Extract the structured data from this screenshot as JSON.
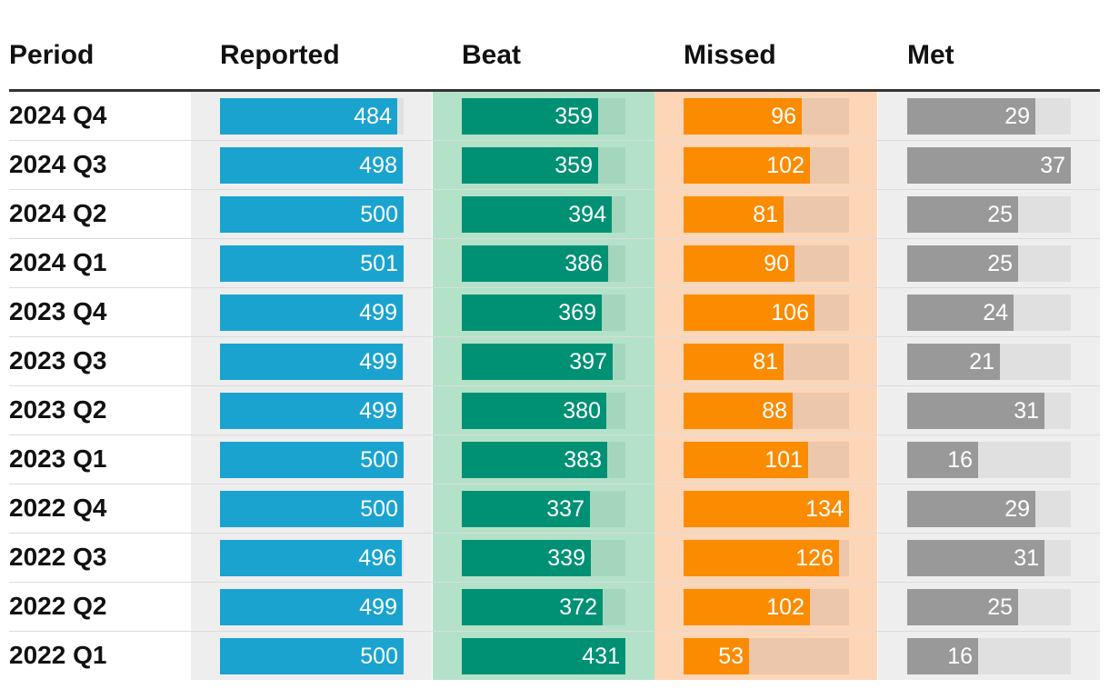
{
  "chart_data": {
    "type": "table",
    "columns": [
      "Period",
      "Reported",
      "Beat",
      "Missed",
      "Met"
    ],
    "rows": [
      {
        "period": "2024 Q4",
        "reported": 484,
        "beat": 359,
        "missed": 96,
        "met": 29
      },
      {
        "period": "2024 Q3",
        "reported": 498,
        "beat": 359,
        "missed": 102,
        "met": 37
      },
      {
        "period": "2024 Q2",
        "reported": 500,
        "beat": 394,
        "missed": 81,
        "met": 25
      },
      {
        "period": "2024 Q1",
        "reported": 501,
        "beat": 386,
        "missed": 90,
        "met": 25
      },
      {
        "period": "2023 Q4",
        "reported": 499,
        "beat": 369,
        "missed": 106,
        "met": 24
      },
      {
        "period": "2023 Q3",
        "reported": 499,
        "beat": 397,
        "missed": 81,
        "met": 21
      },
      {
        "period": "2023 Q2",
        "reported": 499,
        "beat": 380,
        "missed": 88,
        "met": 31
      },
      {
        "period": "2023 Q1",
        "reported": 500,
        "beat": 383,
        "missed": 101,
        "met": 16
      },
      {
        "period": "2022 Q4",
        "reported": 500,
        "beat": 337,
        "missed": 134,
        "met": 29
      },
      {
        "period": "2022 Q3",
        "reported": 496,
        "beat": 339,
        "missed": 126,
        "met": 31
      },
      {
        "period": "2022 Q2",
        "reported": 499,
        "beat": 372,
        "missed": 102,
        "met": 25
      },
      {
        "period": "2022 Q1",
        "reported": 500,
        "beat": 431,
        "missed": 53,
        "met": 16
      }
    ],
    "colors": {
      "reported_bar": "#1ba3cf",
      "reported_track": "#e0e0e0",
      "reported_column_bg": "#eeeeee",
      "beat_bar": "#009175",
      "beat_track": "#a4d6bd",
      "beat_column_bg": "#b3e2c9",
      "missed_bar": "#fb8b00",
      "missed_track": "#edc7ab",
      "missed_column_bg": "#fdd6b8",
      "met_bar": "#999999",
      "met_track": "#e0e0e0",
      "met_column_bg": "#eeeeee",
      "value_text": "#ffffff"
    },
    "grid": false
  }
}
